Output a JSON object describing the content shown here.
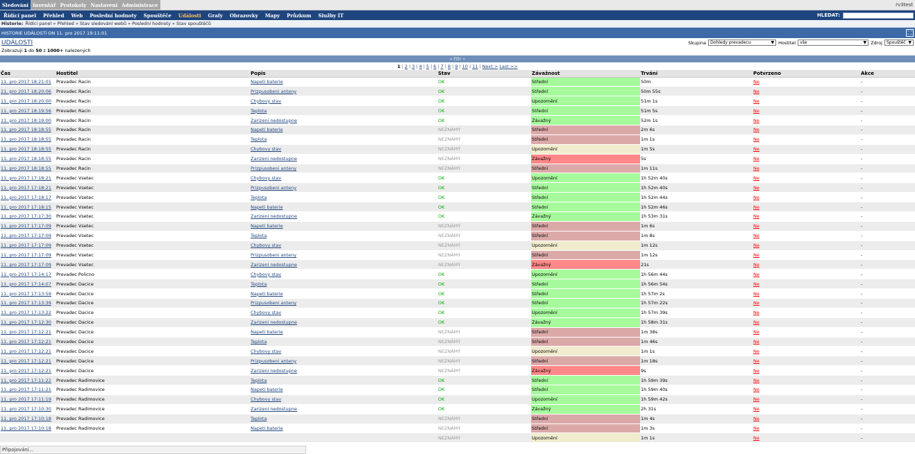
{
  "top_tabs": [
    "Sledování",
    "Inventář",
    "Protokoly",
    "Nastavení",
    "Administrace"
  ],
  "user": "rv3test",
  "menu": [
    "Řídící panel",
    "Přehled",
    "Web",
    "Poslední hodnoty",
    "Spouštěče",
    "Události",
    "Grafy",
    "Obrazovky",
    "Mapy",
    "Průzkum",
    "Služby IT"
  ],
  "search_label": "HLEDAT:",
  "search_value": "",
  "history": {
    "label": "Historie:",
    "path": "Řídící panel » Přehled » Stav sledování webů » Poslední hodnoty » Stav spouštěčů"
  },
  "title_bar": "HISTORIE UDÁLOSTÍ ON 11. pro 2017 19:11:01",
  "page_title": "UDÁLOSTI",
  "filters": {
    "group_label": "Skupina",
    "group_value": "Dohledy prevadecu",
    "host_label": "Hostitel",
    "host_value": "vše",
    "source_label": "Zdroj",
    "source_value": "Spouštěč"
  },
  "count": {
    "prefix": "Zobrazuji",
    "from": "1",
    "to_label": "do",
    "to": "50",
    "of": "z",
    "total": "1000+",
    "suffix": "nalezených"
  },
  "filter_toggle": "« Filtr »",
  "pager": {
    "pages": [
      "1",
      "2",
      "3",
      "4",
      "5",
      "6",
      "7",
      "8",
      "9",
      "10",
      "11"
    ],
    "next": "Next >",
    "last": "Last >>"
  },
  "columns": [
    "Čas",
    "Hostitel",
    "Popis",
    "Stav",
    "Závažnost",
    "Trvání",
    "Potvrzeno",
    "Akce"
  ],
  "rows": [
    [
      "11. pro 2017 18:21:01",
      "Prevadec Racin",
      "Napeti baterie",
      "OK",
      "Střední",
      "50m",
      "Ne",
      "-"
    ],
    [
      "11. pro 2017 18:20:06",
      "Prevadec Racin",
      "Prizpusobeni anteny",
      "OK",
      "Střední",
      "50m 55s",
      "Ne",
      "-"
    ],
    [
      "11. pro 2017 18:20:00",
      "Prevadec Racin",
      "Chybovy stav",
      "OK",
      "Upozornění",
      "51m 1s",
      "Ne",
      "-"
    ],
    [
      "11. pro 2017 18:19:56",
      "Prevadec Racin",
      "Teplota",
      "OK",
      "Střední",
      "51m 5s",
      "Ne",
      "-"
    ],
    [
      "11. pro 2017 18:19:00",
      "Prevadec Racin",
      "Zarizeni nedostupne",
      "OK",
      "Závažný",
      "52m 1s",
      "Ne",
      "-"
    ],
    [
      "11. pro 2017 18:18:55",
      "Prevadec Racin",
      "Napeti baterie",
      "NEZNÁMÝ",
      "Střední",
      "2m 6s",
      "Ne",
      "-"
    ],
    [
      "11. pro 2017 18:18:55",
      "Prevadec Racin",
      "Teplota",
      "NEZNÁMÝ",
      "Střední",
      "1m 1s",
      "Ne",
      "-"
    ],
    [
      "11. pro 2017 18:18:55",
      "Prevadec Racin",
      "Chybovy stav",
      "NEZNÁMÝ",
      "Upozornění",
      "1m 5s",
      "Ne",
      "-"
    ],
    [
      "11. pro 2017 18:18:55",
      "Prevadec Racin",
      "Zarizeni nedostupne",
      "NEZNÁMÝ",
      "Závažný",
      "5s",
      "Ne",
      "-"
    ],
    [
      "11. pro 2017 18:18:55",
      "Prevadec Racin",
      "Prizpusobeni anteny",
      "NEZNÁMÝ",
      "Střední",
      "1m 11s",
      "Ne",
      "-"
    ],
    [
      "11. pro 2017 17:18:21",
      "Prevadec Vsetec",
      "Chybovy stav",
      "OK",
      "Upozornění",
      "1h 52m 40s",
      "Ne",
      "-"
    ],
    [
      "11. pro 2017 17:18:21",
      "Prevadec Vsetec",
      "Prizpusobeni anteny",
      "OK",
      "Střední",
      "1h 52m 40s",
      "Ne",
      "-"
    ],
    [
      "11. pro 2017 17:18:17",
      "Prevadec Vsetec",
      "Teplota",
      "OK",
      "Střední",
      "1h 52m 44s",
      "Ne",
      "-"
    ],
    [
      "11. pro 2017 17:18:15",
      "Prevadec Vsetec",
      "Napeti baterie",
      "OK",
      "Střední",
      "1h 52m 46s",
      "Ne",
      "-"
    ],
    [
      "11. pro 2017 17:17:30",
      "Prevadec Vsetec",
      "Zarizeni nedostupne",
      "OK",
      "Závažný",
      "1h 53m 31s",
      "Ne",
      "-"
    ],
    [
      "11. pro 2017 17:17:09",
      "Prevadec Vsetec",
      "Napeti baterie",
      "NEZNÁMÝ",
      "Střední",
      "1m 6s",
      "Ne",
      "-"
    ],
    [
      "11. pro 2017 17:17:09",
      "Prevadec Vsetec",
      "Teplota",
      "NEZNÁMÝ",
      "Střední",
      "1m 8s",
      "Ne",
      "-"
    ],
    [
      "11. pro 2017 17:17:09",
      "Prevadec Vsetec",
      "Chybovy stav",
      "NEZNÁMÝ",
      "Upozornění",
      "1m 12s",
      "Ne",
      "-"
    ],
    [
      "11. pro 2017 17:17:09",
      "Prevadec Vsetec",
      "Prizpusobeni anteny",
      "NEZNÁMÝ",
      "Střední",
      "1m 12s",
      "Ne",
      "-"
    ],
    [
      "11. pro 2017 17:17:09",
      "Prevadec Vsetec",
      "Zarizeni nedostupne",
      "NEZNÁMÝ",
      "Závažný",
      "21s",
      "Ne",
      "-"
    ],
    [
      "11. pro 2017 17:14:17",
      "Prevadec Policno",
      "Chybovy stav",
      "OK",
      "Upozornění",
      "1h 56m 44s",
      "Ne",
      "-"
    ],
    [
      "11. pro 2017 17:14:07",
      "Prevadec Dacice",
      "Teplota",
      "OK",
      "Střední",
      "1h 56m 54s",
      "Ne",
      "-"
    ],
    [
      "11. pro 2017 17:13:59",
      "Prevadec Dacice",
      "Napeti baterie",
      "OK",
      "Střední",
      "1h 57m 2s",
      "Ne",
      "-"
    ],
    [
      "11. pro 2017 17:13:39",
      "Prevadec Dacice",
      "Prizpusobeni anteny",
      "OK",
      "Střední",
      "1h 57m 22s",
      "Ne",
      "-"
    ],
    [
      "11. pro 2017 17:13:22",
      "Prevadec Dacice",
      "Chybovy stav",
      "OK",
      "Upozornění",
      "1h 57m 39s",
      "Ne",
      "-"
    ],
    [
      "11. pro 2017 17:12:30",
      "Prevadec Dacice",
      "Zarizeni nedostupne",
      "OK",
      "Závažný",
      "1h 58m 31s",
      "Ne",
      "-"
    ],
    [
      "11. pro 2017 17:12:21",
      "Prevadec Dacice",
      "Napeti baterie",
      "NEZNÁMÝ",
      "Střední",
      "1m 38s",
      "Ne",
      "-"
    ],
    [
      "11. pro 2017 17:12:21",
      "Prevadec Dacice",
      "Teplota",
      "NEZNÁMÝ",
      "Střední",
      "1m 46s",
      "Ne",
      "-"
    ],
    [
      "11. pro 2017 17:12:21",
      "Prevadec Dacice",
      "Chybovy stav",
      "NEZNÁMÝ",
      "Upozornění",
      "1m 1s",
      "Ne",
      "-"
    ],
    [
      "11. pro 2017 17:12:21",
      "Prevadec Dacice",
      "Prizpusobeni anteny",
      "NEZNÁMÝ",
      "Střední",
      "1m 18s",
      "Ne",
      "-"
    ],
    [
      "11. pro 2017 17:12:21",
      "Prevadec Dacice",
      "Zarizeni nedostupne",
      "NEZNÁMÝ",
      "Závažný",
      "9s",
      "Ne",
      "-"
    ],
    [
      "11. pro 2017 17:11:22",
      "Prevadec Radimovice",
      "Teplota",
      "OK",
      "Střední",
      "1h 59m 39s",
      "Ne",
      "-"
    ],
    [
      "11. pro 2017 17:11:21",
      "Prevadec Radimovice",
      "Napeti baterie",
      "OK",
      "Střední",
      "1h 59m 40s",
      "Ne",
      "-"
    ],
    [
      "11. pro 2017 17:11:19",
      "Prevadec Radimovice",
      "Chybovy stav",
      "OK",
      "Upozornění",
      "1h 59m 42s",
      "Ne",
      "-"
    ],
    [
      "11. pro 2017 17:10:30",
      "Prevadec Radimovice",
      "Zarizeni nedostupne",
      "OK",
      "Závažný",
      "2h 31s",
      "Ne",
      "-"
    ],
    [
      "11. pro 2017 17:10:18",
      "Prevadec Radimovice",
      "Teplota",
      "NEZNÁMÝ",
      "Střední",
      "1m 4s",
      "Ne",
      "-"
    ],
    [
      "11. pro 2017 17:10:18",
      "Prevadec Radimovice",
      "Napeti baterie",
      "NEZNÁMÝ",
      "Střední",
      "1m 3s",
      "Ne",
      "-"
    ],
    [
      "",
      "",
      "",
      "NEZNÁMÝ",
      "Upozornění",
      "1m 1s",
      "Ne",
      "-"
    ]
  ],
  "colors": {
    "ok_bg": "#a6fa9c",
    "problem_stredni": "#dca9a9",
    "problem_upozorneni": "#f1ecce",
    "problem_zavazny": "#ff8888",
    "brand": "#1f457e"
  },
  "status_bar": "Připojování..."
}
